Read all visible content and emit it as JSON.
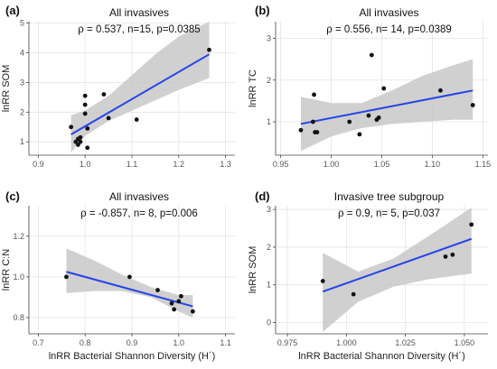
{
  "chart_data": [
    {
      "type": "scatter",
      "panel_label": "(a)",
      "title": "All invasives",
      "stats": "ρ =  0.537, n=15, p=0.0385",
      "xlabel": "",
      "ylabel": "lnRR SOM",
      "xlim": [
        0.88,
        1.32
      ],
      "ylim": [
        0.55,
        5.05
      ],
      "xticks": [
        0.9,
        1.0,
        1.1,
        1.2,
        1.3
      ],
      "xtick_labels": [
        "0.9",
        "1.0",
        "1.1",
        "1.2",
        "1.3"
      ],
      "yticks": [
        1,
        2,
        3,
        4,
        5
      ],
      "ytick_labels": [
        "1",
        "2",
        "3",
        "4",
        "5"
      ],
      "points": {
        "x": [
          0.97,
          0.98,
          0.985,
          0.99,
          0.99,
          1.0,
          1.0,
          1.0,
          1.005,
          1.005,
          1.04,
          1.05,
          1.11,
          1.265,
          0.985
        ],
        "y": [
          1.5,
          1.0,
          0.9,
          1.15,
          1.0,
          1.95,
          2.55,
          2.25,
          0.8,
          1.45,
          2.6,
          1.8,
          1.75,
          4.1,
          1.1
        ]
      },
      "fit": {
        "x": [
          0.97,
          1.265
        ],
        "y": [
          1.25,
          3.95
        ]
      },
      "band": {
        "x": [
          0.97,
          1.0,
          1.05,
          1.1,
          1.15,
          1.2,
          1.265
        ],
        "lower": [
          0.65,
          1.2,
          1.7,
          2.05,
          2.4,
          2.75,
          3.15
        ],
        "upper": [
          1.9,
          2.05,
          2.55,
          3.25,
          3.95,
          4.55,
          5.05
        ]
      },
      "grid": true
    },
    {
      "type": "scatter",
      "panel_label": "(b)",
      "title": "All invasives",
      "stats": "ρ =  0.556, n= 14, p=0.0389",
      "xlabel": "",
      "ylabel": "lnRR TC",
      "xlim": [
        0.945,
        1.155
      ],
      "ylim": [
        0.2,
        3.4
      ],
      "xticks": [
        0.95,
        1.0,
        1.05,
        1.1,
        1.15
      ],
      "xtick_labels": [
        "0.95",
        "1.00",
        "1.05",
        "1.10",
        "1.15"
      ],
      "yticks": [
        1,
        2,
        3
      ],
      "ytick_labels": [
        "1",
        "2",
        "3"
      ],
      "points": {
        "x": [
          0.97,
          0.982,
          0.983,
          0.984,
          0.986,
          1.018,
          1.028,
          1.037,
          1.04,
          1.045,
          1.047,
          1.052,
          1.108,
          1.14
        ],
        "y": [
          0.8,
          1.0,
          1.65,
          0.75,
          0.75,
          1.0,
          0.7,
          1.15,
          2.6,
          1.05,
          1.1,
          1.8,
          1.75,
          1.4
        ]
      },
      "fit": {
        "x": [
          0.97,
          1.14
        ],
        "y": [
          0.95,
          1.75
        ]
      },
      "band": {
        "x": [
          0.97,
          1.0,
          1.03,
          1.06,
          1.09,
          1.12,
          1.14
        ],
        "lower": [
          0.3,
          0.65,
          0.85,
          0.95,
          1.0,
          1.05,
          1.05
        ],
        "upper": [
          1.6,
          1.45,
          1.45,
          1.75,
          2.1,
          2.35,
          2.5
        ]
      },
      "grid": true
    },
    {
      "type": "scatter",
      "panel_label": "(c)",
      "title": "All invasives",
      "stats": "ρ = -0.857, n= 8, p=0.006",
      "xlabel": "lnRR Bacterial Shannon Diversity (H´)",
      "ylabel": "lnRR C:N",
      "xlim": [
        0.68,
        1.12
      ],
      "ylim": [
        0.72,
        1.35
      ],
      "xticks": [
        0.7,
        0.8,
        0.9,
        1.0,
        1.1
      ],
      "xtick_labels": [
        "0.7",
        "0.8",
        "0.9",
        "1.0",
        "1.1"
      ],
      "yticks": [
        0.8,
        1.0,
        1.2
      ],
      "ytick_labels": [
        "0.8",
        "1.0",
        "1.2"
      ],
      "points": {
        "x": [
          0.76,
          0.895,
          0.955,
          0.985,
          0.99,
          1.0,
          1.005,
          1.03
        ],
        "y": [
          1.0,
          1.0,
          0.935,
          0.87,
          0.84,
          0.88,
          0.905,
          0.83
        ]
      },
      "fit": {
        "x": [
          0.76,
          1.03
        ],
        "y": [
          1.025,
          0.855
        ]
      },
      "band": {
        "x": [
          0.76,
          0.82,
          0.88,
          0.94,
          1.0,
          1.03
        ],
        "lower": [
          0.92,
          0.93,
          0.93,
          0.9,
          0.83,
          0.8
        ],
        "upper": [
          1.14,
          1.08,
          1.01,
          0.95,
          0.91,
          0.91
        ]
      },
      "grid": true
    },
    {
      "type": "scatter",
      "panel_label": "(d)",
      "title": "Invasive tree subgroup",
      "stats": "ρ =  0.9, n= 5, p=0.037",
      "xlabel": "lnRR Bacterial Shannon Diversity (H´)",
      "ylabel": "lnRR SOM",
      "xlim": [
        0.97,
        1.06
      ],
      "ylim": [
        -0.3,
        3.1
      ],
      "xticks": [
        0.975,
        1.0,
        1.025,
        1.05
      ],
      "xtick_labels": [
        "0.975",
        "1.000",
        "1.025",
        "1.050"
      ],
      "yticks": [
        0,
        1,
        2,
        3
      ],
      "ytick_labels": [
        "0",
        "1",
        "2",
        "3"
      ],
      "points": {
        "x": [
          0.99,
          1.003,
          1.042,
          1.045,
          1.053
        ],
        "y": [
          1.1,
          0.75,
          1.75,
          1.8,
          2.6
        ]
      },
      "fit": {
        "x": [
          0.99,
          1.053
        ],
        "y": [
          0.82,
          2.22
        ]
      },
      "band": {
        "x": [
          0.99,
          1.005,
          1.02,
          1.035,
          1.053
        ],
        "lower": [
          -0.25,
          0.55,
          0.95,
          1.15,
          1.3
        ],
        "upper": [
          1.85,
          1.35,
          1.7,
          2.3,
          3.05
        ]
      },
      "grid": true
    }
  ],
  "colors": {
    "fit_line": "#2444e8",
    "band": "#c8c8c8",
    "points": "#111111",
    "grid": "#e4e4e4",
    "axis": "#444444"
  }
}
